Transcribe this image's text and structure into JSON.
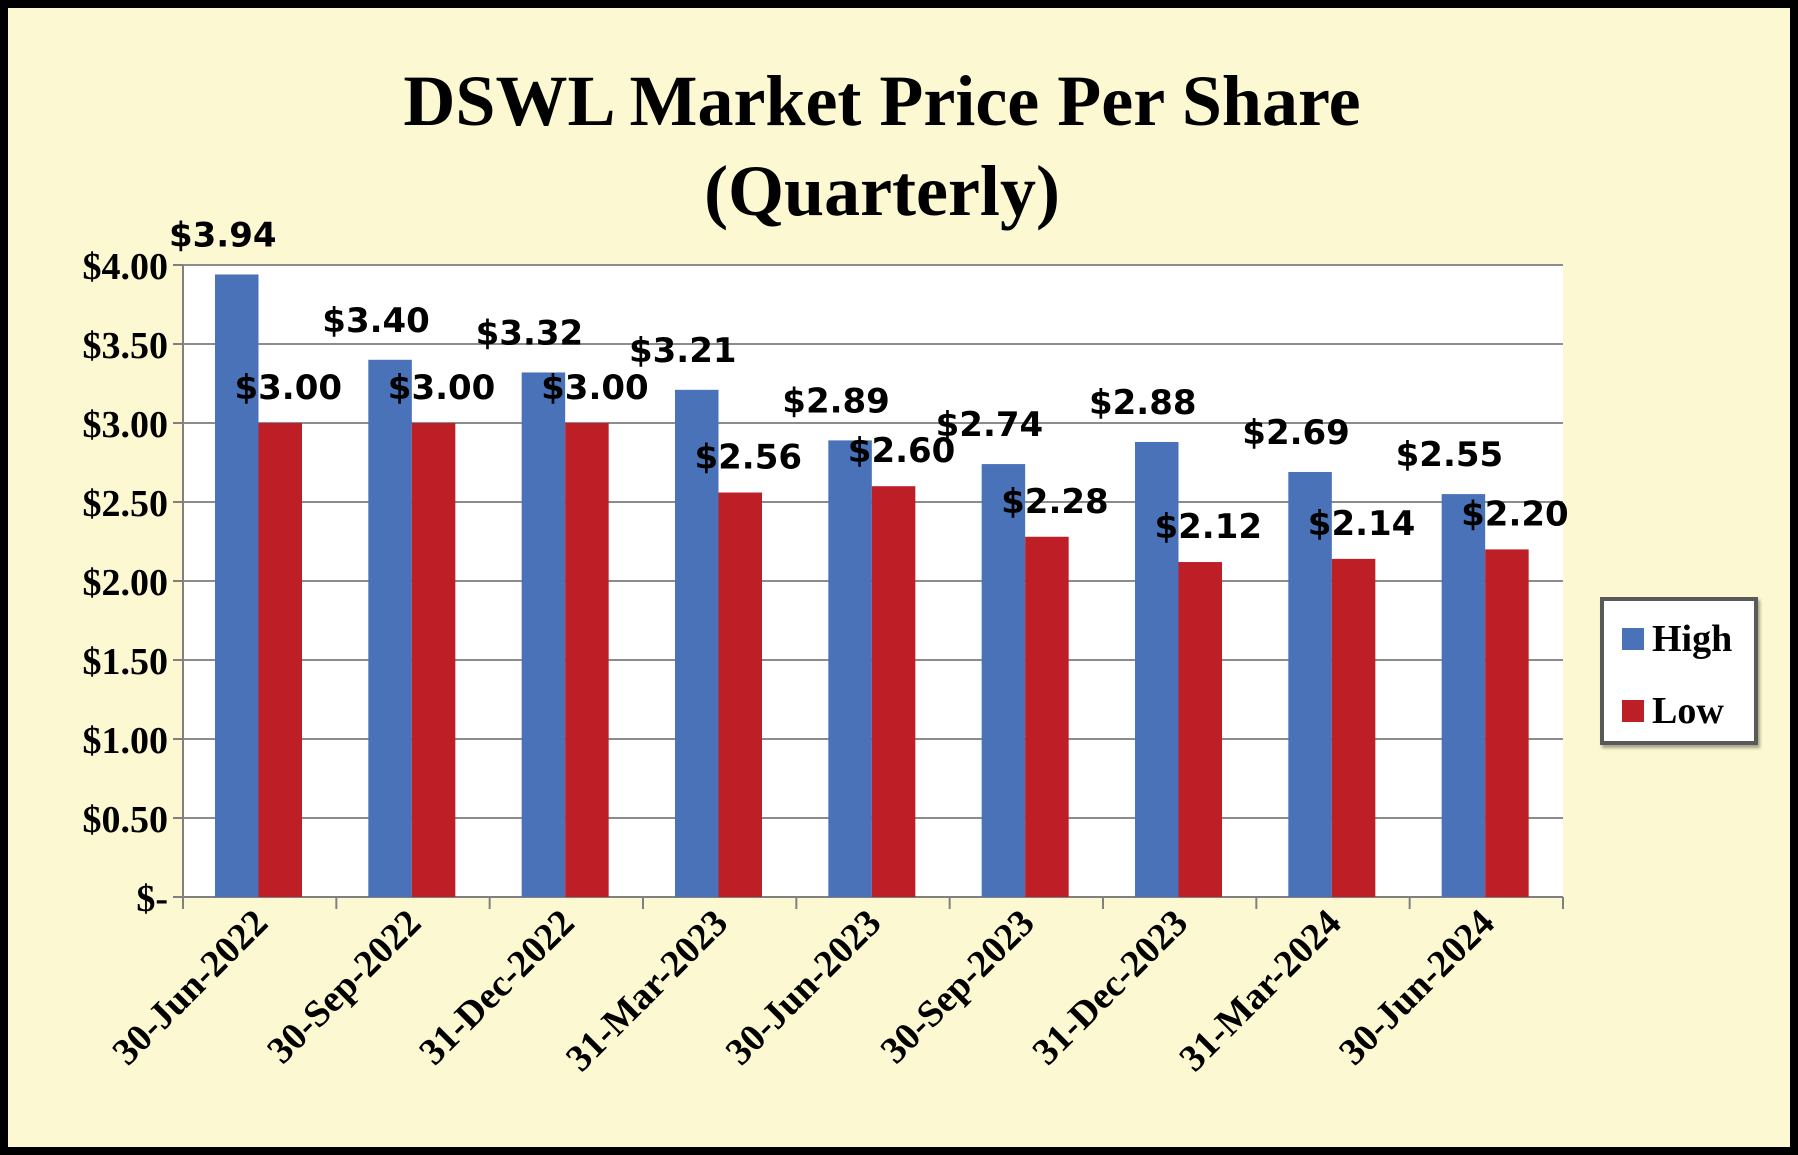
{
  "chart_data": {
    "type": "bar",
    "title": [
      "DSWL Market Price Per Share",
      "(Quarterly)"
    ],
    "categories": [
      "30-Jun-2022",
      "30-Sep-2022",
      "31-Dec-2022",
      "31-Mar-2023",
      "30-Jun-2023",
      "30-Sep-2023",
      "31-Dec-2023",
      "31-Mar-2024",
      "30-Jun-2024"
    ],
    "series": [
      {
        "name": "High",
        "color": "#4A72B8",
        "values": [
          3.94,
          3.4,
          3.32,
          3.21,
          2.89,
          2.74,
          2.88,
          2.69,
          2.55
        ],
        "labels": [
          "$3.94",
          "$3.40",
          "$3.32",
          "$3.21",
          "$2.89",
          "$2.74",
          "$2.88",
          "$2.69",
          "$2.55"
        ]
      },
      {
        "name": "Low",
        "color": "#BE1F27",
        "values": [
          3.0,
          3.0,
          3.0,
          2.56,
          2.6,
          2.28,
          2.12,
          2.14,
          2.2
        ],
        "labels": [
          "$3.00",
          "$3.00",
          "$3.00",
          "$2.56",
          "$2.60",
          "$2.28",
          "$2.12",
          "$2.14",
          "$2.20"
        ]
      }
    ],
    "ylim": [
      0,
      4
    ],
    "yticks": [
      0,
      0.5,
      1,
      1.5,
      2,
      2.5,
      3,
      3.5,
      4
    ],
    "ytick_labels": [
      "$-",
      "$0.50",
      "$1.00",
      "$1.50",
      "$2.00",
      "$2.50",
      "$3.00",
      "$3.50",
      "$4.00"
    ],
    "xlabel": "",
    "ylabel": "",
    "grid": true,
    "legend_position": "right",
    "plot_background": "#FFFFFF",
    "background": "#FCF8D2"
  }
}
